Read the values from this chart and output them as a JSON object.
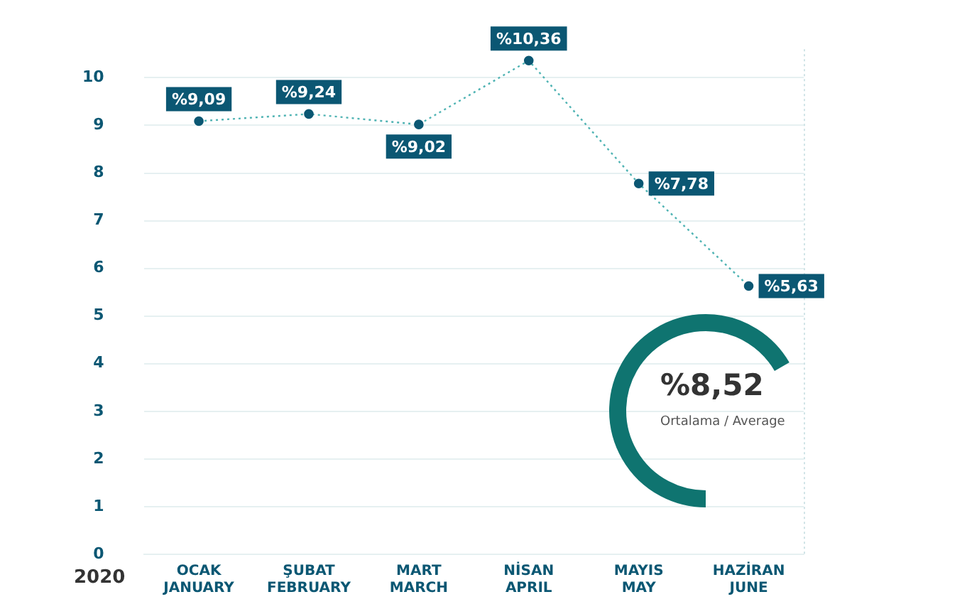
{
  "chart_data": {
    "type": "line",
    "categories": [
      "OCAK\nJANUARY",
      "ŞUBAT\nFEBRUARY",
      "MART\nMARCH",
      "NİSAN\nAPRIL",
      "MAYIS\nMAY",
      "HAZİRAN\nJUNE"
    ],
    "series": [
      {
        "color": "#4fb3b3",
        "values": [
          9.09,
          9.24,
          9.02,
          10.36,
          7.78,
          5.63
        ],
        "value_labels": [
          "%9,09",
          "%9,24",
          "%9,02",
          "%10,36",
          "%7,78",
          "%5,63"
        ]
      }
    ],
    "ylim": [
      0,
      10.6
    ],
    "yticks": [
      0,
      1,
      2,
      3,
      4,
      5,
      6,
      7,
      8,
      9,
      10
    ],
    "grid": "y",
    "legend": false,
    "marker": "circle",
    "line_style": "dotted",
    "annotations": [
      "%8,52",
      "Ortalama / Average",
      "2020"
    ]
  }
}
